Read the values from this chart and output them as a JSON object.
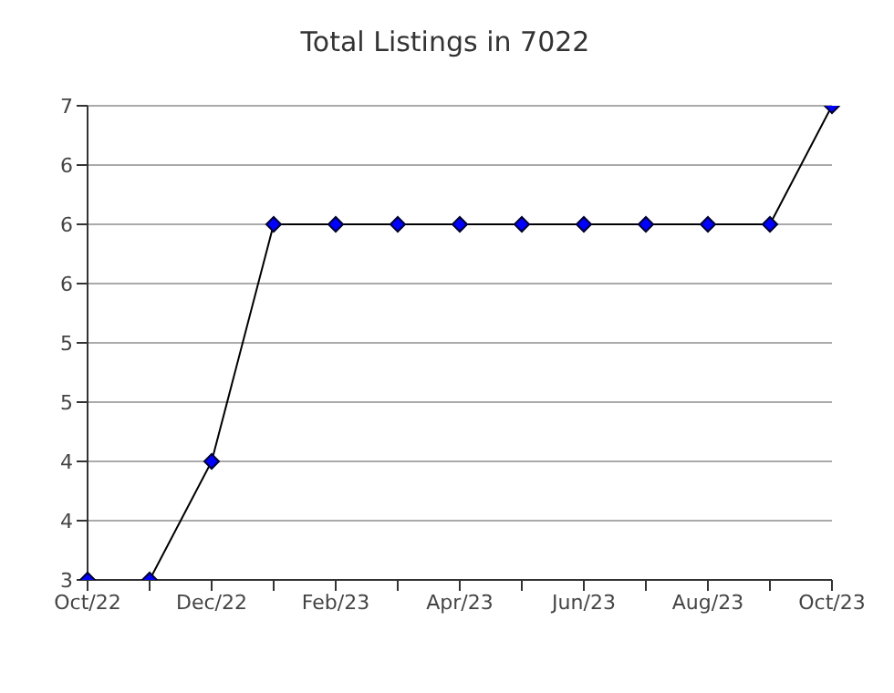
{
  "chart_data": {
    "type": "line",
    "title": "Total Listings in 7022",
    "categories": [
      "Oct/22",
      null,
      "Dec/22",
      null,
      "Feb/23",
      null,
      "Apr/23",
      null,
      "Jun/23",
      null,
      "Aug/23",
      null,
      "Oct/23"
    ],
    "series": [
      {
        "color": "#0000ff",
        "values": [
          3,
          3,
          4,
          6,
          6,
          6,
          6,
          6,
          6,
          6,
          6,
          6,
          7
        ]
      }
    ],
    "ylim": [
      3,
      7
    ],
    "yticks": [
      3,
      {
        "value": 3.5,
        "label": "4"
      },
      4,
      {
        "value": 4.5,
        "label": "5"
      },
      5,
      {
        "value": 5.5,
        "label": "6"
      },
      6,
      {
        "value": 6.5,
        "label": "6"
      },
      7
    ],
    "grid": "y",
    "marker": "diamond",
    "line_style": "solid"
  }
}
